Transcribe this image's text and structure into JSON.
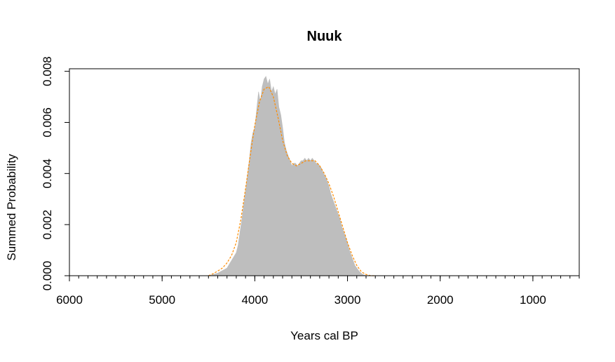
{
  "chart_data": {
    "type": "area",
    "title": "Nuuk",
    "xlabel": "Years cal BP",
    "ylabel": "Summed Probability",
    "xlim": [
      6000,
      500
    ],
    "ylim": [
      0,
      0.0081
    ],
    "x_reversed": true,
    "x_ticks": [
      6000,
      5000,
      4000,
      3000,
      2000,
      1000
    ],
    "x_tick_labels": [
      "6000",
      "5000",
      "4000",
      "3000",
      "2000",
      "1000"
    ],
    "x_minor_tick_step": 100,
    "y_ticks": [
      0,
      0.002,
      0.004,
      0.006,
      0.008
    ],
    "y_tick_labels": [
      "0.000",
      "0.002",
      "0.004",
      "0.006",
      "0.008"
    ],
    "grid": false,
    "legend": "none",
    "colors": {
      "fill": "#bebebe",
      "smoothed": "#ff8c00",
      "axis": "#000000"
    },
    "series": [
      {
        "style": "filled-area",
        "x": [
          4500,
          4450,
          4400,
          4350,
          4300,
          4250,
          4200,
          4180,
          4160,
          4140,
          4120,
          4100,
          4080,
          4060,
          4040,
          4020,
          4000,
          3980,
          3960,
          3940,
          3920,
          3900,
          3880,
          3860,
          3840,
          3820,
          3800,
          3780,
          3760,
          3740,
          3720,
          3700,
          3680,
          3660,
          3640,
          3620,
          3600,
          3580,
          3560,
          3540,
          3520,
          3500,
          3480,
          3460,
          3440,
          3420,
          3400,
          3380,
          3360,
          3340,
          3320,
          3300,
          3280,
          3260,
          3240,
          3220,
          3200,
          3180,
          3160,
          3140,
          3120,
          3100,
          3080,
          3060,
          3040,
          3020,
          3000,
          2980,
          2960,
          2940,
          2920,
          2900,
          2880,
          2860,
          2840,
          2820,
          2800,
          2780,
          2760,
          2740,
          2720,
          2700
        ],
        "y": [
          0.0,
          5e-05,
          0.0001,
          0.0002,
          0.0003,
          0.0006,
          0.0009,
          0.0012,
          0.0017,
          0.0022,
          0.0028,
          0.0033,
          0.0039,
          0.0045,
          0.0052,
          0.0056,
          0.0058,
          0.0065,
          0.0072,
          0.0068,
          0.0074,
          0.0077,
          0.0078,
          0.0075,
          0.0077,
          0.0072,
          0.0074,
          0.0071,
          0.0073,
          0.0066,
          0.0063,
          0.0058,
          0.0052,
          0.0049,
          0.0047,
          0.0045,
          0.0043,
          0.0044,
          0.0044,
          0.0043,
          0.0044,
          0.0045,
          0.0045,
          0.0046,
          0.0045,
          0.0046,
          0.0045,
          0.0046,
          0.0045,
          0.0044,
          0.0044,
          0.0043,
          0.0042,
          0.004,
          0.0039,
          0.0037,
          0.0035,
          0.0032,
          0.003,
          0.0028,
          0.0026,
          0.0024,
          0.0022,
          0.0019,
          0.0017,
          0.0015,
          0.0013,
          0.001,
          0.0008,
          0.0006,
          0.0004,
          0.0003,
          0.0002,
          0.00012,
          6e-05,
          3e-05,
          0.0,
          0.0,
          0.0,
          0.0,
          0.0,
          0.0
        ]
      },
      {
        "style": "dashed-line",
        "x": [
          4500,
          4450,
          4400,
          4350,
          4300,
          4250,
          4200,
          4150,
          4100,
          4050,
          4000,
          3950,
          3900,
          3850,
          3800,
          3750,
          3700,
          3650,
          3600,
          3550,
          3500,
          3450,
          3400,
          3350,
          3300,
          3250,
          3200,
          3150,
          3100,
          3050,
          3000,
          2950,
          2900,
          2850,
          2800,
          2750,
          2700
        ],
        "y": [
          0.0,
          8e-05,
          0.00018,
          0.0003,
          0.0005,
          0.0008,
          0.0013,
          0.0022,
          0.0034,
          0.0047,
          0.0059,
          0.0068,
          0.0073,
          0.0074,
          0.007,
          0.0062,
          0.0053,
          0.0047,
          0.0044,
          0.0043,
          0.0044,
          0.0045,
          0.0045,
          0.0045,
          0.0043,
          0.004,
          0.0036,
          0.0031,
          0.0025,
          0.0019,
          0.0013,
          0.0008,
          0.0004,
          0.00015,
          5e-05,
          0.0,
          0.0
        ]
      }
    ]
  }
}
